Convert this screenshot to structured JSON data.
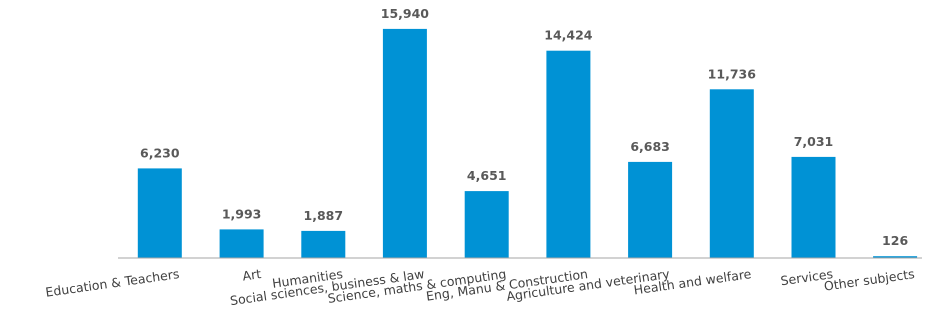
{
  "chart_data": {
    "type": "bar",
    "categories": [
      "Education & Teachers",
      "Art",
      "Humanities",
      "Social sciences, business & law",
      "Science, maths & computing",
      "Eng, Manu & Construction",
      "Agriculture and veterinary",
      "Health and welfare",
      "Services",
      "Other subjects"
    ],
    "values": [
      6230,
      1993,
      1887,
      15940,
      4651,
      14424,
      6683,
      11736,
      7031,
      126
    ],
    "value_labels": [
      "6,230",
      "1,993",
      "1,887",
      "15,940",
      "4,651",
      "14,424",
      "6,683",
      "11,736",
      "7,031",
      "126"
    ],
    "ylim": [
      0,
      16000
    ],
    "grid": false,
    "legend": "none",
    "colors": {
      "bar": "#0092D5",
      "axis": "#A6A6A6",
      "value_text": "#595959",
      "category_text": "#404040"
    }
  }
}
